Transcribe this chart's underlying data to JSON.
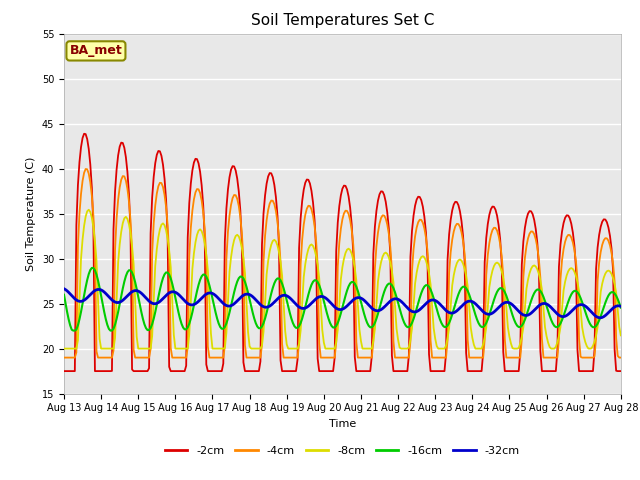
{
  "title": "Soil Temperatures Set C",
  "xlabel": "Time",
  "ylabel": "Soil Temperature (C)",
  "ylim": [
    15,
    55
  ],
  "yticks": [
    15,
    20,
    25,
    30,
    35,
    40,
    45,
    50,
    55
  ],
  "annotation": "BA_met",
  "legend_labels": [
    "-2cm",
    "-4cm",
    "-8cm",
    "-16cm",
    "-32cm"
  ],
  "colors": [
    "#dd0000",
    "#ff8800",
    "#dddd00",
    "#00cc00",
    "#0000cc"
  ],
  "linewidths": [
    1.3,
    1.3,
    1.3,
    1.5,
    2.0
  ],
  "background_color": "#e8e8e8",
  "plot_bg": "#e8e8e8",
  "fig_bg": "#ffffff",
  "grid_color": "#ffffff",
  "annotation_fc": "#ffffaa",
  "annotation_ec": "#888800",
  "annotation_tc": "#880000",
  "title_fontsize": 11,
  "label_fontsize": 8,
  "tick_fontsize": 7,
  "legend_fontsize": 8
}
